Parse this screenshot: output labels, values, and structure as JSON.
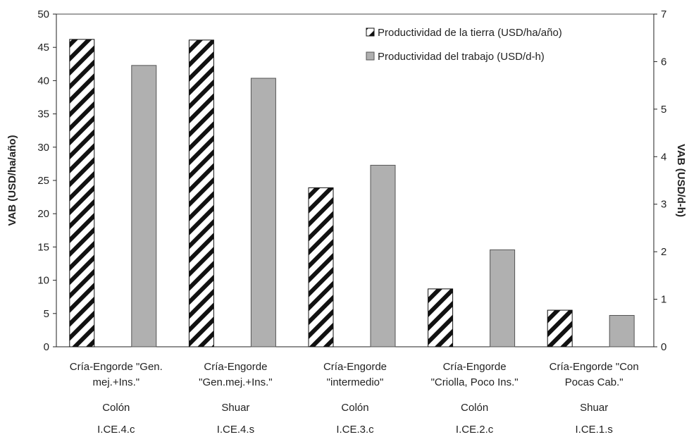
{
  "chart_data": {
    "type": "bar",
    "title": "",
    "ylabel": "VAB (USD/ha/año)",
    "y2label": "VAB (USD/d-h)",
    "ylim": [
      0,
      50
    ],
    "y2lim": [
      0,
      7
    ],
    "yticks": [
      "0",
      "5",
      "10",
      "15",
      "20",
      "25",
      "30",
      "35",
      "40",
      "45",
      "50"
    ],
    "y2ticks": [
      "0",
      "1",
      "2",
      "3",
      "4",
      "5",
      "6",
      "7"
    ],
    "legend_position": "top-right",
    "categories": [
      {
        "line1": "Cría-Engorde \"Gen.",
        "line2": "mej.+Ins.\"",
        "line3": "Colón",
        "line4": "I.CE.4.c"
      },
      {
        "line1": "Cría-Engorde",
        "line2": "\"Gen.mej.+Ins.\"",
        "line3": "Shuar",
        "line4": "I.CE.4.s"
      },
      {
        "line1": "Cría-Engorde",
        "line2": "\"intermedio\"",
        "line3": "Colón",
        "line4": "I.CE.3.c"
      },
      {
        "line1": "Cría-Engorde",
        "line2": "\"Criolla, Poco Ins.\"",
        "line3": "Colón",
        "line4": "I.CE.2.c"
      },
      {
        "line1": "Cría-Engorde \"Con",
        "line2": "Pocas Cab.\"",
        "line3": "Shuar",
        "line4": "I.CE.1.s"
      }
    ],
    "series": [
      {
        "name": "Productividad de la tierra (USD/ha/año)",
        "axis": "left",
        "pattern": "hatch",
        "values": [
          46.2,
          46.1,
          23.9,
          8.7,
          5.5
        ]
      },
      {
        "name": "Productividad del trabajo (USD/d-h)",
        "axis": "right",
        "pattern": "gray",
        "color": "#b0b0b0",
        "values": [
          5.92,
          5.65,
          3.82,
          2.04,
          0.66
        ]
      }
    ]
  }
}
